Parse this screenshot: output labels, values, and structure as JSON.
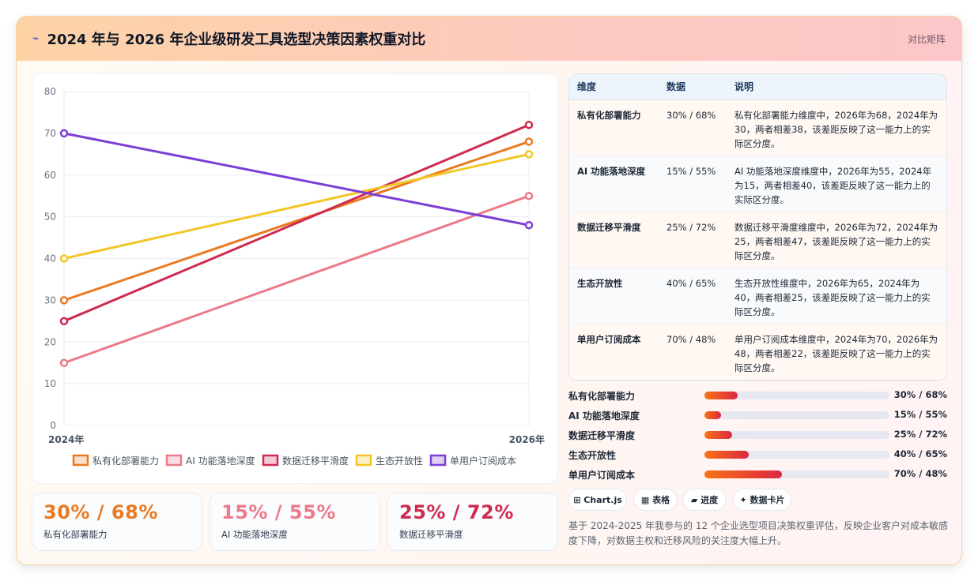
{
  "header": {
    "logo_icon": "bolt-icon",
    "title": "2024 年与 2026 年企业级研发工具选型决策因素权重对比",
    "right_label": "对比矩阵"
  },
  "chart_data": {
    "type": "line",
    "x": [
      "2024年",
      "2026年"
    ],
    "ylim": [
      0,
      80
    ],
    "yticks": [
      0,
      10,
      20,
      30,
      40,
      50,
      60,
      70,
      80
    ],
    "grid": true,
    "legend_position": "bottom",
    "series": [
      {
        "name": "私有化部署能力",
        "values": [
          30,
          68
        ],
        "color": "#ea7a22"
      },
      {
        "name": "AI 功能落地深度",
        "values": [
          15,
          55
        ],
        "color": "#ec7a8a"
      },
      {
        "name": "数据迁移平滑度",
        "values": [
          25,
          72
        ],
        "color": "#cf2a4f"
      },
      {
        "name": "生态开放性",
        "values": [
          40,
          65
        ],
        "color": "#f2c626"
      },
      {
        "name": "单用户订阅成本",
        "values": [
          70,
          48
        ],
        "color": "#7c3fd6"
      }
    ]
  },
  "kpis": [
    {
      "value": "30% / 68%",
      "label": "私有化部署能力",
      "color": "#ea7a22"
    },
    {
      "value": "15% / 55%",
      "label": "AI 功能落地深度",
      "color": "#ec7a8a"
    },
    {
      "value": "25% / 72%",
      "label": "数据迁移平滑度",
      "color": "#cf2a4f"
    }
  ],
  "table": {
    "headers": [
      "维度",
      "数据",
      "说明"
    ],
    "rows": [
      {
        "dim": "私有化部署能力",
        "data": "30% / 68%",
        "desc": "私有化部署能力维度中，2026年为68，2024年为30，两者相差38，该差距反映了这一能力上的实际区分度。"
      },
      {
        "dim": "AI 功能落地深度",
        "data": "15% / 55%",
        "desc": "AI 功能落地深度维度中，2026年为55，2024年为15，两者相差40，该差距反映了这一能力上的实际区分度。"
      },
      {
        "dim": "数据迁移平滑度",
        "data": "25% / 72%",
        "desc": "数据迁移平滑度维度中，2026年为72，2024年为25，两者相差47，该差距反映了这一能力上的实际区分度。"
      },
      {
        "dim": "生态开放性",
        "data": "40% / 65%",
        "desc": "生态开放性维度中，2026年为65，2024年为40，两者相差25，该差距反映了这一能力上的实际区分度。"
      },
      {
        "dim": "单用户订阅成本",
        "data": "70% / 48%",
        "desc": "单用户订阅成本维度中，2024年为70，2026年为48，两者相差22，该差距反映了这一能力上的实际区分度。"
      }
    ]
  },
  "progress": [
    {
      "label": "私有化部署能力",
      "value": "30% / 68%",
      "fraction": 0.18
    },
    {
      "label": "AI 功能落地深度",
      "value": "15% / 55%",
      "fraction": 0.09
    },
    {
      "label": "数据迁移平滑度",
      "value": "25% / 72%",
      "fraction": 0.15
    },
    {
      "label": "生态开放性",
      "value": "40% / 65%",
      "fraction": 0.24
    },
    {
      "label": "单用户订阅成本",
      "value": "70% / 48%",
      "fraction": 0.42
    }
  ],
  "tags": [
    {
      "icon": "chart-icon",
      "label": "⊞ Chart.js"
    },
    {
      "icon": "table-icon",
      "label": "▦ 表格"
    },
    {
      "icon": "progress-icon",
      "label": "▰ 进度"
    },
    {
      "icon": "sparkle-icon",
      "label": "✦ 数据卡片"
    }
  ],
  "note": "基于 2024-2025 年我参与的 12 个企业选型项目决策权重评估，反映企业客户对成本敏感度下降，对数据主权和迁移风险的关注度大幅上升。"
}
